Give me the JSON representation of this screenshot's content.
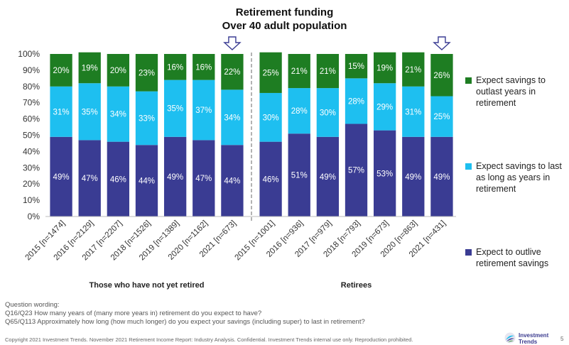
{
  "title": {
    "line1": "Retirement funding",
    "line2": "Over 40 adult population"
  },
  "colors": {
    "outlast": "#1e7d22",
    "last_as_long": "#1ebff0",
    "outlive": "#3a3c93",
    "axis_text": "#333333",
    "divider": "#9a9a9a"
  },
  "chart_data": {
    "type": "bar",
    "stacked": true,
    "ylim": [
      0,
      100
    ],
    "yticks": [
      "0%",
      "10%",
      "20%",
      "30%",
      "40%",
      "50%",
      "60%",
      "70%",
      "80%",
      "90%",
      "100%"
    ],
    "categories": [
      "2015 [n=1474]",
      "2016 [n=2129]",
      "2017 [n=2207]",
      "2018 [n=1526]",
      "2019 [n=1389]",
      "2020 [n=1162]",
      "2021 [n=673]",
      "2015 [n=1001]",
      "2016 [n=936]",
      "2017 [n=979]",
      "2018 [n=793]",
      "2019 [n=673]",
      "2020 [n=863]",
      "2021 [n=431]"
    ],
    "groups": [
      "Those who have not yet retired",
      "Retirees"
    ],
    "highlighted_categories": [
      "2021 [n=673]",
      "2021 [n=431]"
    ],
    "series": [
      {
        "name": "Expect to outlive retirement savings",
        "values": [
          49,
          47,
          46,
          44,
          49,
          47,
          44,
          46,
          51,
          49,
          57,
          53,
          49,
          49
        ],
        "labels": [
          "49%",
          "47%",
          "46%",
          "44%",
          "49%",
          "47%",
          "44%",
          "46%",
          "51%",
          "49%",
          "57%",
          "53%",
          "49%",
          "49%"
        ]
      },
      {
        "name": "Expect savings to last as long as years in retirement",
        "values": [
          31,
          35,
          34,
          33,
          35,
          37,
          34,
          30,
          28,
          30,
          28,
          29,
          31,
          25
        ],
        "labels": [
          "31%",
          "35%",
          "34%",
          "33%",
          "35%",
          "37%",
          "34%",
          "30%",
          "28%",
          "30%",
          "28%",
          "29%",
          "31%",
          "25%"
        ]
      },
      {
        "name": "Expect savings to outlast years in retirement",
        "values": [
          20,
          19,
          20,
          23,
          16,
          16,
          22,
          25,
          21,
          21,
          15,
          19,
          21,
          26
        ],
        "labels": [
          "20%",
          "19%",
          "20%",
          "23%",
          "16%",
          "16%",
          "22%",
          "25%",
          "21%",
          "21%",
          "15%",
          "19%",
          "21%",
          "26%"
        ]
      }
    ]
  },
  "legend": [
    {
      "label": "Expect savings to outlast years in retirement",
      "color": "#1e7d22"
    },
    {
      "label": "Expect savings to last as long as years in retirement",
      "color": "#1ebff0"
    },
    {
      "label": "Expect to outlive retirement savings",
      "color": "#3a3c93"
    }
  ],
  "question": {
    "heading": "Question wording:",
    "q1": "Q16/Q23 How many years of (many more years in) retirement do you expect to have?",
    "q2": "Q65/Q113 Approximately how long (how much longer) do you expect your savings (including super) to last in retirement?"
  },
  "footer": "Copyright 2021 Investment Trends. November 2021 Retirement Income Report: Industry Analysis. Confidential. Investment Trends internal use only. Reproduction prohibited.",
  "logo": {
    "line1": "Investment",
    "line2": "Trends"
  },
  "page_number": "5"
}
